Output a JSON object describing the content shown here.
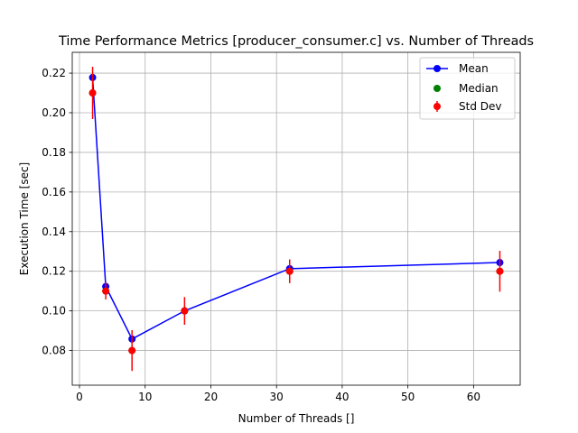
{
  "chart_data": {
    "type": "line",
    "title": "Time Performance Metrics [producer_consumer.c] vs. Number of Threads",
    "xlabel": "Number of Threads []",
    "ylabel": "Execution Time [sec]",
    "xlim": [
      -1.1,
      67.1
    ],
    "ylim": [
      0.0625,
      0.2305
    ],
    "grid": true,
    "legend_position": "top-right",
    "x_ticks": [
      0,
      10,
      20,
      30,
      40,
      50,
      60
    ],
    "y_ticks": [
      0.08,
      0.1,
      0.12,
      0.14,
      0.16,
      0.18,
      0.2,
      0.22
    ],
    "x": [
      2,
      4,
      8,
      16,
      32,
      64
    ],
    "series": [
      {
        "name": "Mean",
        "values": [
          0.2178,
          0.1123,
          0.0858,
          0.1,
          0.1213,
          0.1244
        ],
        "color": "#0000ff"
      },
      {
        "name": "Median",
        "values": [
          0.21,
          0.11,
          0.08,
          0.1,
          0.12,
          0.12
        ],
        "color": "#008000"
      },
      {
        "name": "Std Dev",
        "values": [
          0.0132,
          0.0042,
          0.0103,
          0.007,
          0.006,
          0.0103
        ],
        "color": "#ff0000"
      }
    ]
  }
}
